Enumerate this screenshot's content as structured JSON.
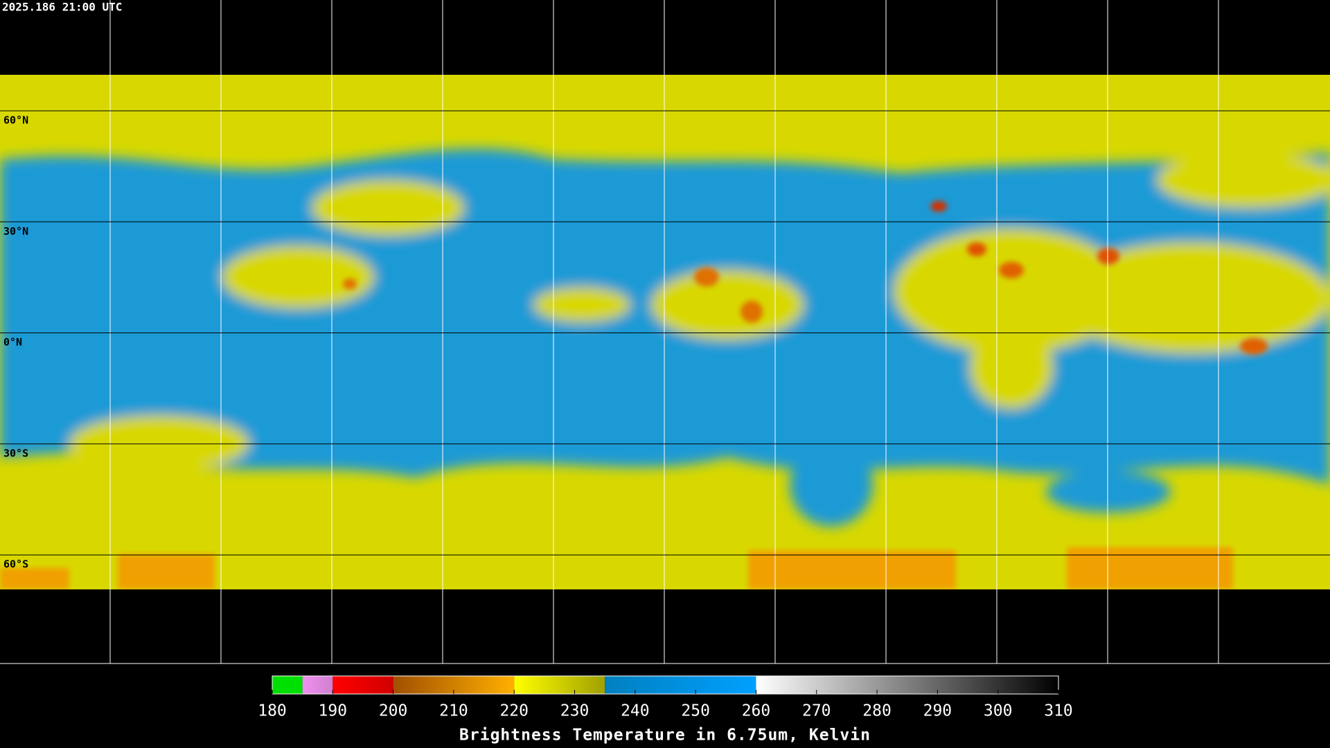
{
  "header": {
    "timestamp": "2025.186 21:00 UTC"
  },
  "map": {
    "latitude_labels": [
      "60°N",
      "30°N",
      "0°N",
      "30°S",
      "60°S"
    ]
  },
  "colorbar": {
    "title": "Brightness Temperature in 6.75um, Kelvin",
    "range": [
      180,
      310
    ],
    "ticks": [
      180,
      190,
      200,
      210,
      220,
      230,
      240,
      250,
      260,
      270,
      280,
      290,
      300,
      310
    ],
    "segments": [
      {
        "from": 180,
        "to": 185,
        "colors": [
          "#00e000",
          "#00e000"
        ]
      },
      {
        "from": 185,
        "to": 190,
        "colors": [
          "#f090f0",
          "#d080d0"
        ]
      },
      {
        "from": 190,
        "to": 200,
        "colors": [
          "#ff0000",
          "#d00000"
        ]
      },
      {
        "from": 200,
        "to": 220,
        "colors": [
          "#a05000",
          "#ffb000"
        ]
      },
      {
        "from": 220,
        "to": 235,
        "colors": [
          "#ffff00",
          "#a0a000"
        ]
      },
      {
        "from": 235,
        "to": 260,
        "colors": [
          "#0080c0",
          "#00a0ff"
        ]
      },
      {
        "from": 260,
        "to": 310,
        "colors": [
          "#ffffff",
          "#000000"
        ]
      }
    ]
  }
}
